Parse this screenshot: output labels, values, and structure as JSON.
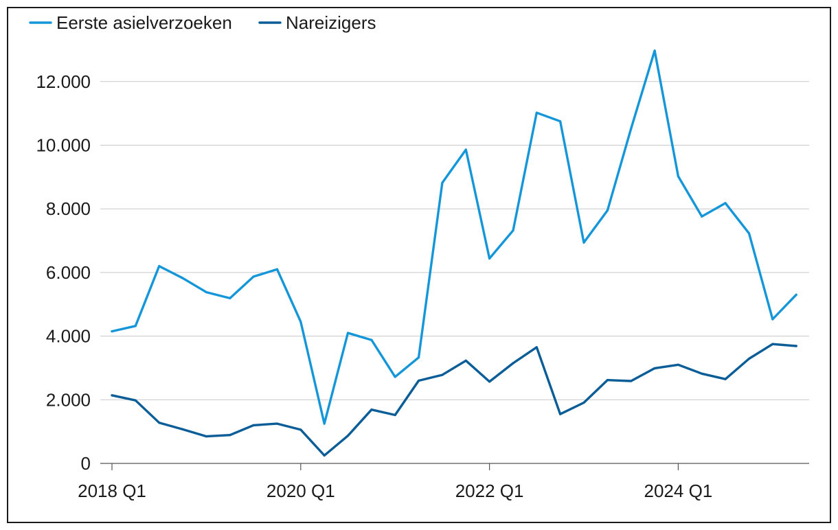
{
  "chart_data": {
    "type": "line",
    "title": "",
    "xlabel": "",
    "ylabel": "",
    "x": [
      "2018 Q1",
      "2018 Q2",
      "2018 Q3",
      "2018 Q4",
      "2019 Q1",
      "2019 Q2",
      "2019 Q3",
      "2019 Q4",
      "2020 Q1",
      "2020 Q2",
      "2020 Q3",
      "2020 Q4",
      "2021 Q1",
      "2021 Q2",
      "2021 Q3",
      "2021 Q4",
      "2022 Q1",
      "2022 Q2",
      "2022 Q3",
      "2022 Q4",
      "2023 Q1",
      "2023 Q2",
      "2023 Q3",
      "2023 Q4",
      "2024 Q1",
      "2024 Q2",
      "2024 Q3",
      "2024 Q4",
      "2025 Q1",
      "2025 Q2"
    ],
    "x_tick_labels": [
      "2018 Q1",
      "2020 Q1",
      "2022 Q1",
      "2024 Q1"
    ],
    "y_tick_labels": [
      "0",
      "2.000",
      "4.000",
      "6.000",
      "8.000",
      "10.000",
      "12.000"
    ],
    "y_ticks": [
      0,
      2000,
      4000,
      6000,
      8000,
      10000,
      12000
    ],
    "ylim": [
      0,
      13000
    ],
    "grid": "horizontal",
    "legend": "top-left",
    "series": [
      {
        "name": "Eerste asielverzoeken",
        "color": "#1496d8",
        "values": [
          4150,
          4320,
          6200,
          5820,
          5380,
          5190,
          5870,
          6100,
          4450,
          1250,
          4100,
          3880,
          2720,
          3330,
          8820,
          9860,
          6440,
          7320,
          11020,
          10750,
          6940,
          7950,
          10520,
          12970,
          9020,
          7760,
          8180,
          7230,
          4530,
          5300
        ]
      },
      {
        "name": "Nareizigers",
        "color": "#0a5d96",
        "values": [
          2140,
          1980,
          1280,
          1070,
          850,
          890,
          1200,
          1250,
          1060,
          250,
          870,
          1690,
          1520,
          2600,
          2780,
          3230,
          2570,
          3150,
          3650,
          1550,
          1910,
          2620,
          2590,
          2990,
          3100,
          2820,
          2650,
          3290,
          3750,
          3690
        ]
      }
    ]
  }
}
